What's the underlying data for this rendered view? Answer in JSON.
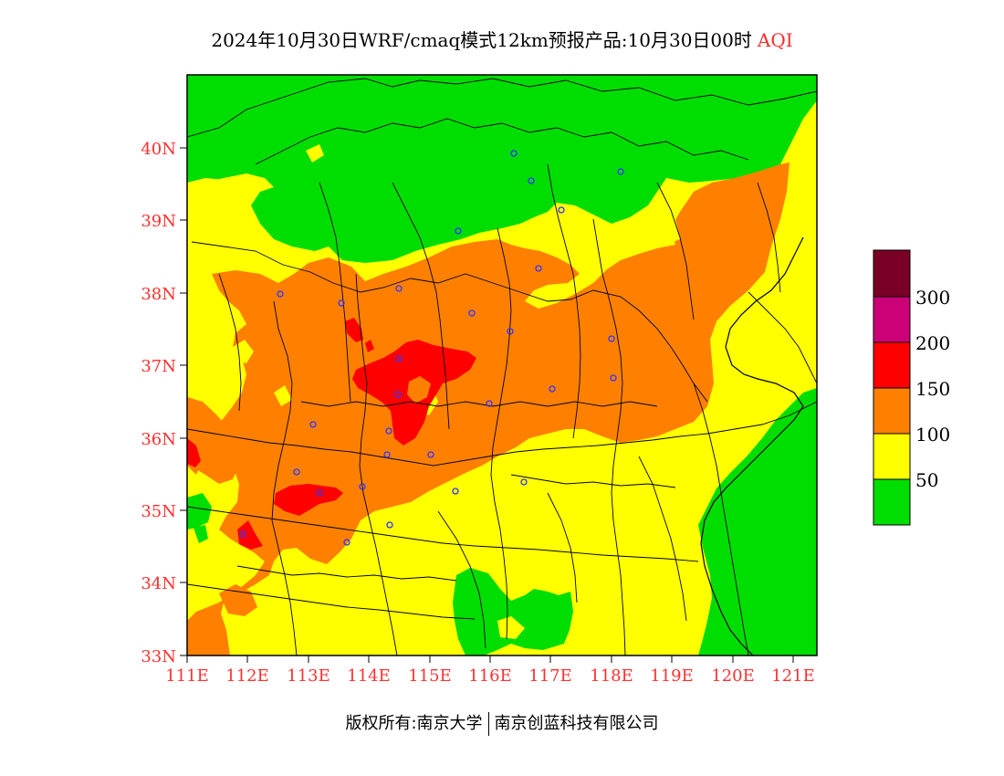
{
  "title": {
    "main": "2024年10月30日WRF/cmaq模式12km预报产品:10月30日00时",
    "variable": "AQI"
  },
  "map": {
    "lat_ticks": [
      "33N",
      "34N",
      "35N",
      "36N",
      "37N",
      "38N",
      "39N",
      "40N"
    ],
    "lon_ticks": [
      "111E",
      "112E",
      "113E",
      "114E",
      "115E",
      "116E",
      "117E",
      "118E",
      "119E",
      "120E",
      "121E"
    ],
    "lat_range": [
      33,
      41
    ],
    "lon_range": [
      111,
      121.4
    ]
  },
  "legend": {
    "labels": [
      "300",
      "200",
      "150",
      "100",
      "50"
    ],
    "colors": {
      "good": "#00dd00",
      "moderate": "#ffff00",
      "usg": "#ff8000",
      "unhealthy": "#ff0000",
      "very_unhealthy": "#cc0077",
      "hazardous": "#7a0025"
    }
  },
  "copyright": {
    "owner": "版权所有:南京大学",
    "company": "南京创蓝科技有限公司"
  }
}
